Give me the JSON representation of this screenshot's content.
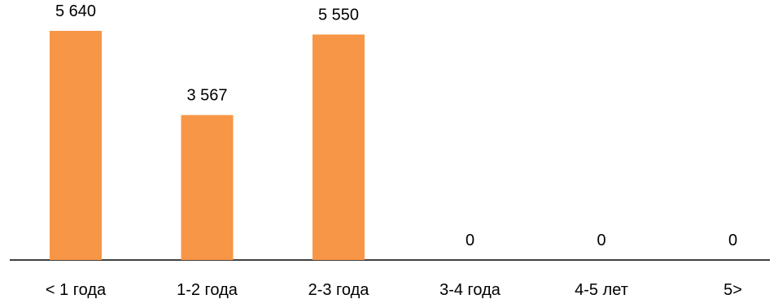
{
  "chart_data": {
    "type": "bar",
    "categories": [
      "< 1 года",
      "1-2 года",
      "2-3 года",
      "3-4 года",
      "4-5 лет",
      "5>"
    ],
    "values": [
      5640,
      3567,
      5550,
      0,
      0,
      0
    ],
    "value_labels": [
      "5 640",
      "3 567",
      "5 550",
      "0",
      "0",
      "0"
    ],
    "title": "",
    "xlabel": "",
    "ylabel": "",
    "ylim": [
      0,
      6000
    ],
    "grid": false,
    "legend": "none",
    "bar_color": "#F79646",
    "axis_color": "#000000"
  }
}
